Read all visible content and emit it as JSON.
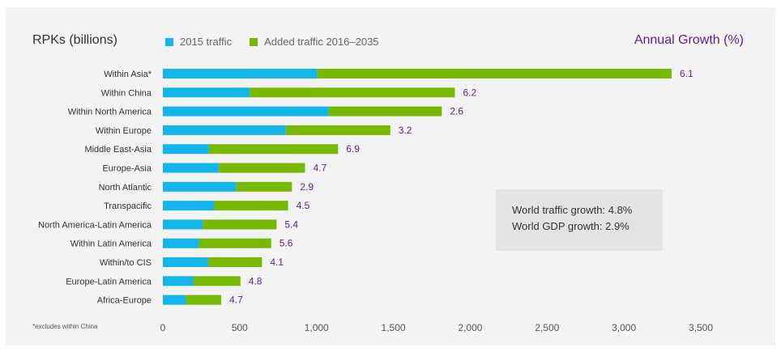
{
  "colors": {
    "base": "#13b5ea",
    "added": "#76b900",
    "accent": "#5b1f8a"
  },
  "header": {
    "left_title": "RPKs (billions)",
    "right_title": "Annual Growth (%)"
  },
  "legend": [
    {
      "label": "2015 traffic",
      "color": "#13b5ea"
    },
    {
      "label": "Added traffic 2016–2035",
      "color": "#76b900"
    }
  ],
  "footnote": "*excludes within China",
  "info_box": {
    "line1": "World traffic growth: 4.8%",
    "line2": "World GDP growth: 2.9%"
  },
  "chart_data": {
    "type": "bar",
    "orientation": "horizontal",
    "stacked": true,
    "title": "",
    "xlabel": "",
    "ylabel": "RPKs (billions)",
    "xlim": [
      0,
      3500
    ],
    "x_ticks": [
      0,
      500,
      1000,
      1500,
      2000,
      2500,
      3000,
      3500
    ],
    "x_tick_labels": [
      "0",
      "500",
      "1,000",
      "1,500",
      "2,000",
      "2,500",
      "3,000",
      "3,500"
    ],
    "grid": false,
    "legend_position": "top",
    "categories": [
      "Within Asia*",
      "Within China",
      "Within North America",
      "Within Europe",
      "Middle East-Asia",
      "Europe-Asia",
      "North Atlantic",
      "Transpacific",
      "North America-Latin America",
      "Within Latin America",
      "Within/to CIS",
      "Europe-Latin America",
      "Africa-Europe"
    ],
    "series": [
      {
        "name": "2015 traffic",
        "color": "#13b5ea",
        "values": [
          1005,
          565,
          1080,
          800,
          300,
          365,
          475,
          335,
          260,
          235,
          295,
          200,
          150
        ]
      },
      {
        "name": "Added traffic 2016–2035",
        "color": "#76b900",
        "values": [
          2305,
          1335,
          735,
          680,
          840,
          560,
          365,
          480,
          480,
          470,
          350,
          305,
          230
        ]
      }
    ],
    "annual_growth_label": "Annual Growth (%)",
    "annual_growth": [
      "6.1",
      "6.2",
      "2.6",
      "3.2",
      "6.9",
      "4.7",
      "2.9",
      "4.5",
      "5.4",
      "5.6",
      "4.1",
      "4.8",
      "4.7"
    ]
  }
}
